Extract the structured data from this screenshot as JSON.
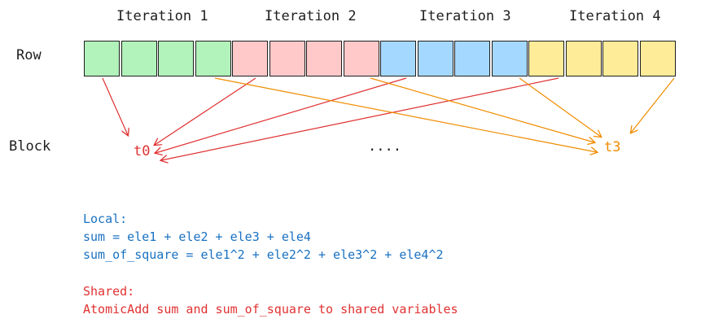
{
  "iterations": [
    "Iteration 1",
    "Iteration 2",
    "Iteration 3",
    "Iteration 4"
  ],
  "row_label": "Row",
  "block_label": "Block",
  "cells": [
    {
      "color": "#b2f2bb"
    },
    {
      "color": "#b2f2bb"
    },
    {
      "color": "#b2f2bb"
    },
    {
      "color": "#b2f2bb"
    },
    {
      "color": "#ffc9c9"
    },
    {
      "color": "#ffc9c9"
    },
    {
      "color": "#ffc9c9"
    },
    {
      "color": "#ffc9c9"
    },
    {
      "color": "#a5d8ff"
    },
    {
      "color": "#a5d8ff"
    },
    {
      "color": "#a5d8ff"
    },
    {
      "color": "#a5d8ff"
    },
    {
      "color": "#ffec99"
    },
    {
      "color": "#ffec99"
    },
    {
      "color": "#ffec99"
    },
    {
      "color": "#ffec99"
    }
  ],
  "threads": {
    "t0": "t0",
    "t3": "t3",
    "ellipsis": "...."
  },
  "colors": {
    "t0": "#e03131",
    "t3": "#f08c00",
    "local": "#1971c2",
    "shared": "#e03131"
  },
  "local": {
    "title": "Local:",
    "line1": "sum = ele1 + ele2 + ele3 + ele4",
    "line2": "sum_of_square = ele1^2 + ele2^2 + ele3^2 + ele4^2"
  },
  "shared": {
    "title": "Shared:",
    "line1": "AtomicAdd sum and sum_of_square to shared variables"
  }
}
